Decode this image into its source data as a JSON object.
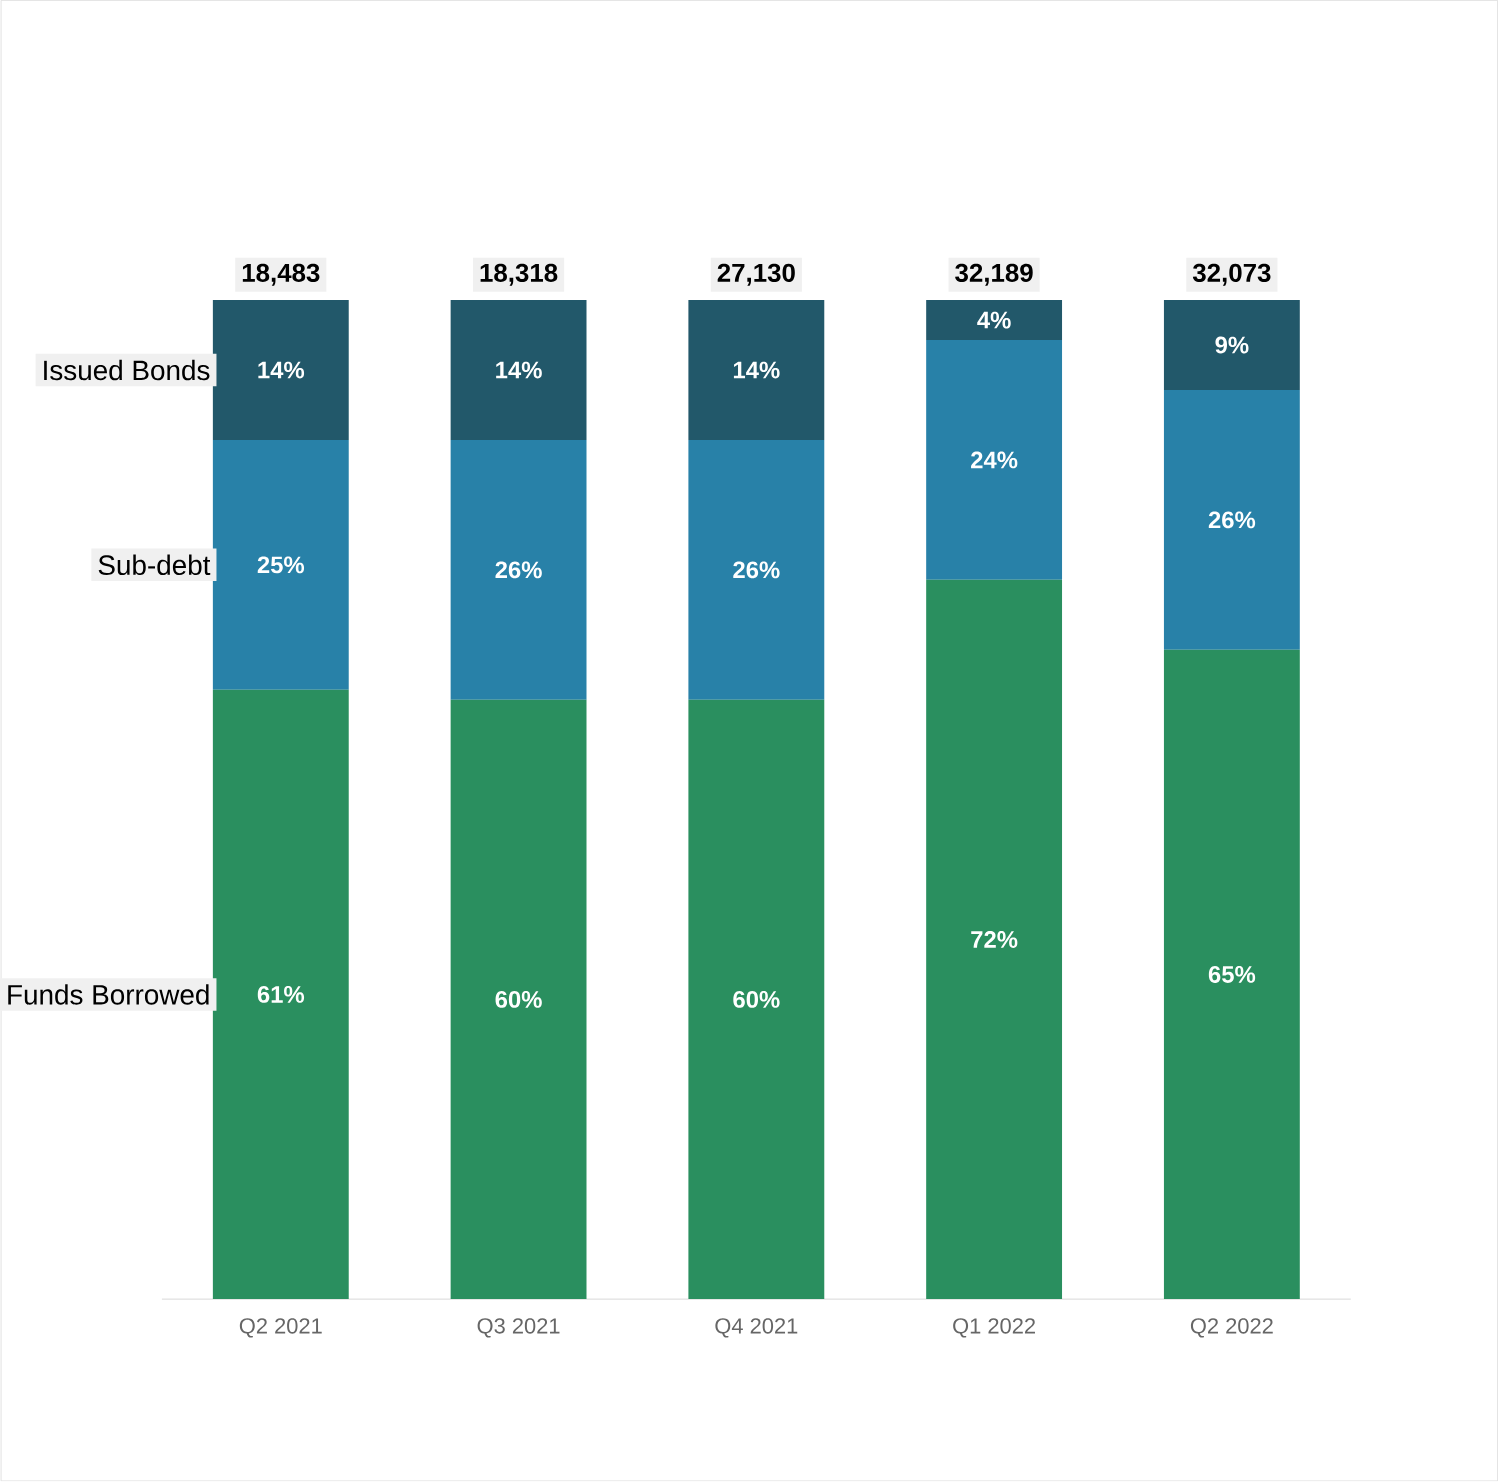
{
  "chart_data": {
    "type": "bar",
    "stacked": true,
    "categories": [
      "Q2 2021",
      "Q3 2021",
      "Q4 2021",
      "Q1 2022",
      "Q2 2022"
    ],
    "series": [
      {
        "name": "Funds Borrowed",
        "color": "#2a8f5f",
        "values": [
          61,
          60,
          60,
          72,
          65
        ],
        "value_labels": [
          "61%",
          "60%",
          "60%",
          "72%",
          "65%"
        ]
      },
      {
        "name": "Sub-debt",
        "color": "#2881a8",
        "values": [
          25,
          26,
          26,
          24,
          26
        ],
        "value_labels": [
          "25%",
          "26%",
          "26%",
          "24%",
          "26%"
        ]
      },
      {
        "name": "Issued Bonds",
        "color": "#22586a",
        "values": [
          14,
          14,
          14,
          4,
          9
        ],
        "value_labels": [
          "14%",
          "14%",
          "14%",
          "4%",
          "9%"
        ]
      }
    ],
    "annotations": [
      "18,483",
      "18,318",
      "27,130",
      "32,189",
      "32,073"
    ],
    "ylim": [
      0,
      100
    ],
    "tick_labels": "x",
    "grid": false,
    "legend": false
  }
}
